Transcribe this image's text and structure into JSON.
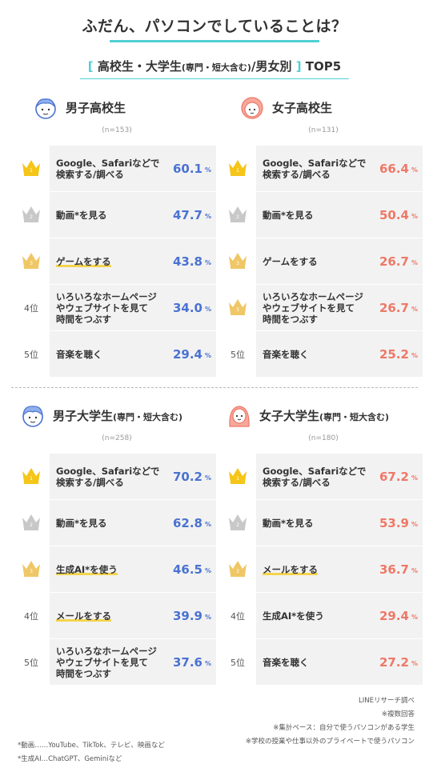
{
  "title": "ふだん、パソコンでしていることは？",
  "subtitle": {
    "bracket_left": "[",
    "main": "高校生・大学生",
    "paren": "(専門・短大含む)",
    "rest": "/男女別",
    "bracket_right": "]",
    "top": "TOP5"
  },
  "colors": {
    "accent": "#4fd1d4",
    "male": "#4a72d1",
    "female": "#ee7867",
    "gold": "#f5c518",
    "silver": "#c8c8c8",
    "bronze": "#f0c766",
    "underline": "#f4d44d"
  },
  "panels": [
    {
      "name": "男子高校生",
      "name_small": "",
      "n": "(n=153)",
      "avatar": "boy-icon",
      "rows": [
        {
          "rank": "1",
          "label": "Google、Safariなどで\n検索する/調べる",
          "value": "60.1",
          "pct": "%"
        },
        {
          "rank": "2",
          "label": "動画*を見る",
          "value": "47.7",
          "pct": "%"
        },
        {
          "rank": "3",
          "label": "ゲームをする",
          "value": "43.8",
          "pct": "%"
        },
        {
          "rank": "4位",
          "label": "いろいろなホームページ\nやウェブサイトを見て\n時間をつぶす",
          "value": "34.0",
          "pct": "%"
        },
        {
          "rank": "5位",
          "label": "音楽を聴く",
          "value": "29.4",
          "pct": "%"
        }
      ]
    },
    {
      "name": "女子高校生",
      "name_small": "",
      "n": "(n=131)",
      "avatar": "girl-icon",
      "rows": [
        {
          "rank": "1",
          "label": "Google、Safariなどで\n検索する/調べる",
          "value": "66.4",
          "pct": "%"
        },
        {
          "rank": "2",
          "label": "動画*を見る",
          "value": "50.4",
          "pct": "%"
        },
        {
          "rank": "3",
          "label": "ゲームをする",
          "value": "26.7",
          "pct": "%"
        },
        {
          "rank": "3",
          "label": "いろいろなホームページ\nやウェブサイトを見て\n時間をつぶす",
          "value": "26.7",
          "pct": "%"
        },
        {
          "rank": "5位",
          "label": "音楽を聴く",
          "value": "25.2",
          "pct": "%"
        }
      ]
    },
    {
      "name": "男子大学生",
      "name_small": "(専門・短大含む)",
      "n": "(n=258)",
      "avatar": "young-man-icon",
      "rows": [
        {
          "rank": "1",
          "label": "Google、Safariなどで\n検索する/調べる",
          "value": "70.2",
          "pct": "%"
        },
        {
          "rank": "2",
          "label": "動画*を見る",
          "value": "62.8",
          "pct": "%"
        },
        {
          "rank": "3",
          "label": "生成AI*を使う",
          "value": "46.5",
          "pct": "%"
        },
        {
          "rank": "4位",
          "label": "メールをする",
          "value": "39.9",
          "pct": "%"
        },
        {
          "rank": "5位",
          "label": "いろいろなホームページ\nやウェブサイトを見て\n時間をつぶす",
          "value": "37.6",
          "pct": "%"
        }
      ]
    },
    {
      "name": "女子大学生",
      "name_small": "(専門・短大含む)",
      "n": "(n=180)",
      "avatar": "young-woman-icon",
      "rows": [
        {
          "rank": "1",
          "label": "Google、Safariなどで\n検索する/調べる",
          "value": "67.2",
          "pct": "%"
        },
        {
          "rank": "2",
          "label": "動画*を見る",
          "value": "53.9",
          "pct": "%"
        },
        {
          "rank": "3",
          "label": "メールをする",
          "value": "36.7",
          "pct": "%"
        },
        {
          "rank": "4位",
          "label": "生成AI*を使う",
          "value": "29.4",
          "pct": "%"
        },
        {
          "rank": "5位",
          "label": "音楽を聴く",
          "value": "27.2",
          "pct": "%"
        }
      ]
    }
  ],
  "notes": {
    "source": "LINEリサーチ調べ",
    "multi": "※複数回答",
    "base": "※集計ベース：自分で使うパソコンがある学生",
    "scope": "※学校の授業や仕事以外のプライベートで使うパソコン",
    "video": "*動画……YouTube、TikTok、テレビ、映画など",
    "ai": "*生成AI…ChatGPT、Geminiなど"
  }
}
